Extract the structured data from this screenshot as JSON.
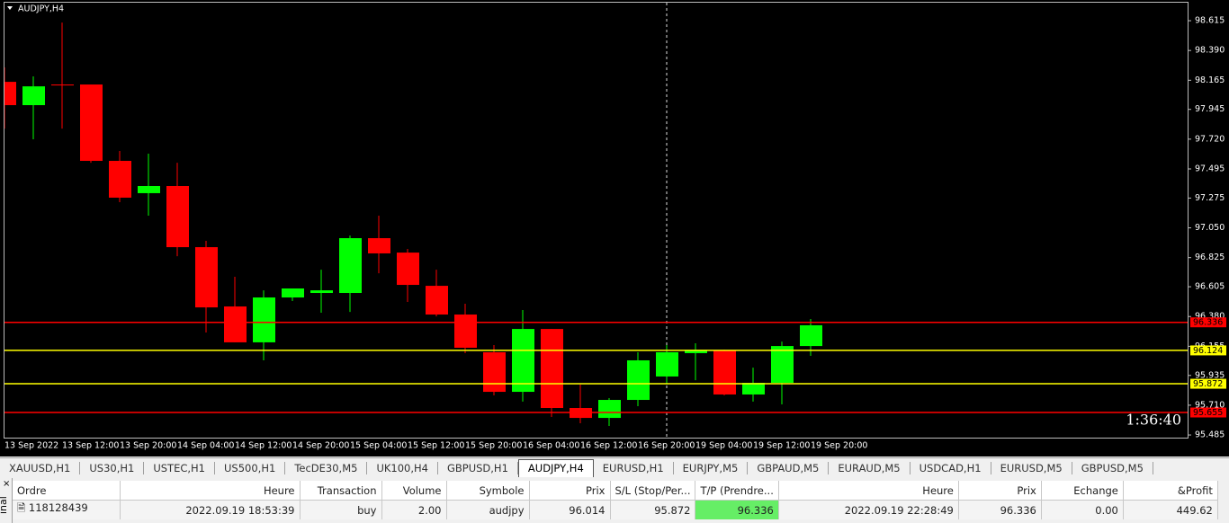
{
  "chart_data": {
    "type": "candlestick",
    "title": "AUDJPY,H4",
    "categories": [
      "13 Sep 2022",
      null,
      "13 Sep 12:00",
      null,
      "13 Sep 20:00",
      null,
      "14 Sep 04:00",
      null,
      "14 Sep 12:00",
      null,
      "14 Sep 20:00",
      null,
      "15 Sep 04:00",
      null,
      "15 Sep 12:00",
      null,
      "15 Sep 20:00",
      null,
      "16 Sep 04:00",
      null,
      "16 Sep 12:00",
      null,
      "16 Sep 20:00",
      null,
      "19 Sep 04:00",
      null,
      "19 Sep 12:00",
      null,
      "19 Sep 20:00"
    ],
    "open": [
      98.153,
      97.977,
      98.133,
      98.133,
      97.556,
      97.312,
      97.366,
      96.904,
      96.456,
      96.185,
      96.524,
      96.558,
      96.558,
      96.972,
      96.863,
      96.612,
      96.395,
      96.11,
      95.811,
      96.286,
      95.689,
      95.614,
      95.75,
      95.927,
      96.103,
      96.123,
      95.791,
      95.879,
      96.157
    ],
    "high": [
      98.262,
      98.194,
      98.601,
      98.133,
      97.631,
      97.61,
      97.542,
      96.952,
      96.68,
      96.578,
      96.592,
      96.734,
      96.992,
      97.142,
      96.891,
      96.734,
      96.477,
      96.164,
      96.429,
      96.286,
      95.866,
      95.764,
      96.11,
      96.164,
      96.178,
      96.13,
      95.994,
      96.191,
      96.361
    ],
    "low": [
      97.8,
      97.719,
      97.8,
      97.542,
      97.244,
      97.142,
      96.836,
      96.259,
      96.185,
      96.049,
      96.497,
      96.409,
      96.415,
      96.707,
      96.49,
      96.381,
      96.103,
      95.784,
      95.737,
      95.621,
      95.574,
      95.553,
      95.703,
      95.866,
      95.899,
      95.784,
      95.737,
      95.716,
      96.083
    ],
    "close": [
      97.977,
      98.119,
      98.126,
      97.556,
      97.278,
      97.366,
      96.904,
      96.449,
      96.185,
      96.524,
      96.592,
      96.578,
      96.972,
      96.857,
      96.619,
      96.395,
      96.144,
      95.811,
      96.286,
      95.689,
      95.614,
      95.75,
      96.049,
      96.11,
      96.123,
      95.791,
      95.879,
      96.157,
      96.314
    ],
    "up_color": "#00ff00",
    "down_color": "#ff0000",
    "ylim": [
      95.465,
      98.751
    ],
    "yticks": [
      {
        "value": 98.615,
        "label": "98.615"
      },
      {
        "value": 98.39,
        "label": "98.390"
      },
      {
        "value": 98.165,
        "label": "98.165"
      },
      {
        "value": 97.945,
        "label": "97.945"
      },
      {
        "value": 97.72,
        "label": "97.720"
      },
      {
        "value": 97.495,
        "label": "97.495"
      },
      {
        "value": 97.275,
        "label": "97.275"
      },
      {
        "value": 97.05,
        "label": "97.050"
      },
      {
        "value": 96.825,
        "label": "96.825"
      },
      {
        "value": 96.605,
        "label": "96.605"
      },
      {
        "value": 96.38,
        "label": "96.380"
      },
      {
        "value": 96.155,
        "label": "96.155"
      },
      {
        "value": 95.935,
        "label": "95.935"
      },
      {
        "value": 95.71,
        "label": "95.710"
      },
      {
        "value": 95.485,
        "label": "95.485"
      }
    ],
    "levels": [
      {
        "value": 96.336,
        "color": "#ff0000"
      },
      {
        "value": 96.124,
        "color": "#ffff00"
      },
      {
        "value": 95.872,
        "color": "#ffff00"
      },
      {
        "value": 95.655,
        "color": "#ff0000"
      }
    ],
    "countdown": "1:36:40"
  },
  "tabs": [
    "XAUUSD,H1",
    "US30,H1",
    "USTEC,H1",
    "US500,H1",
    "TecDE30,M5",
    "UK100,H4",
    "GBPUSD,H1",
    "AUDJPY,H4",
    "EURUSD,H1",
    "EURJPY,M5",
    "GBPAUD,M5",
    "EURAUD,M5",
    "USDCAD,H1",
    "EURUSD,M5",
    "GBPUSD,M5"
  ],
  "active_tab": 7,
  "terminal": {
    "label": "inal",
    "columns": [
      "Ordre",
      "Heure",
      "Transaction",
      "Volume",
      "Symbole",
      "Prix",
      "S/L (Stop/Per...",
      "T/P (Prendre...",
      "Heure",
      "Prix",
      "Echange",
      "&Profit"
    ],
    "rows": [
      [
        "118128439",
        "2022.09.19 18:53:39",
        "buy",
        "2.00",
        "audjpy",
        "96.014",
        "95.872",
        "96.336",
        "2022.09.19 22:28:49",
        "96.336",
        "0.00",
        "449.62"
      ]
    ]
  }
}
